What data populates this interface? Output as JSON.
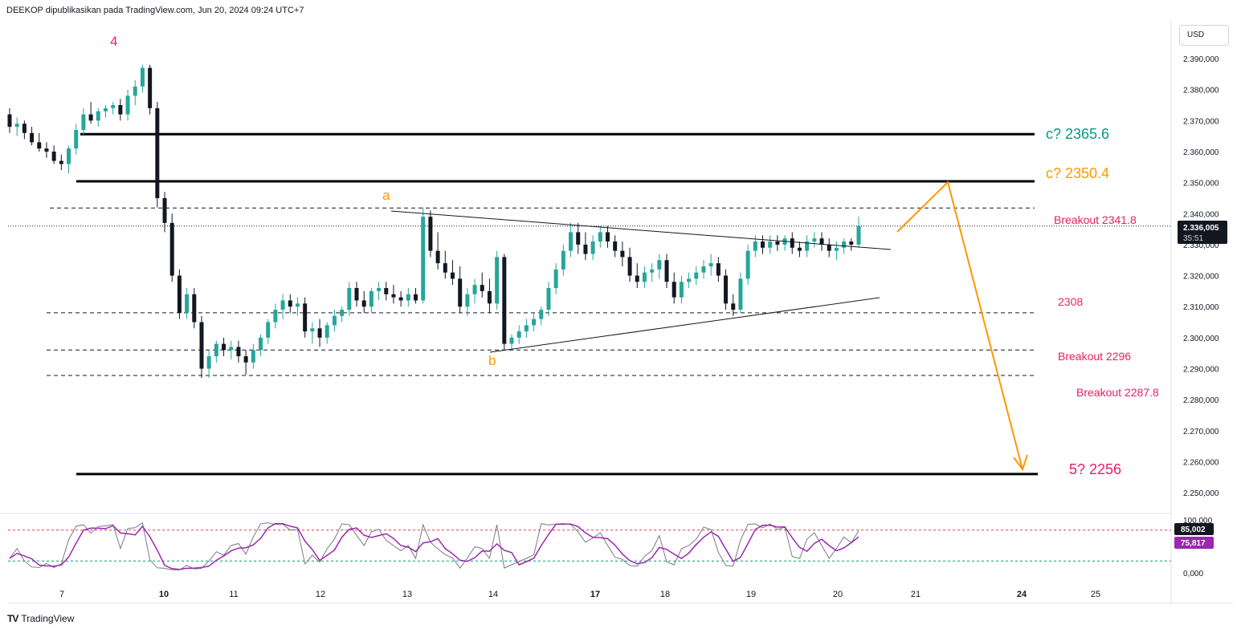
{
  "header": {
    "publish_text": "DEEKOP dipublikasikan pada TradingView.com, Jun 20, 2024 09:24 UTC+7"
  },
  "currency": {
    "label": "USD"
  },
  "logo": {
    "mark": "TV",
    "text": "TradingView"
  },
  "colors": {
    "up": "#26a69a",
    "down": "#131722",
    "wave_label_red": "#e91e63",
    "wave_label_orange": "#ff9800",
    "target_teal": "#089981",
    "projection": "#ff9800",
    "stoch_k": "#787b86",
    "stoch_d": "#9c27b0",
    "stoch_upper": "#f23645",
    "stoch_lower": "#089981"
  },
  "price_scale": {
    "ticks": [
      "2.390,000",
      "2.380,000",
      "2.370,000",
      "2.360,000",
      "2.350,000",
      "2.340,000",
      "2.330,000",
      "2.320,000",
      "2.310,000",
      "2.300,000",
      "2.290,000",
      "2.280,000",
      "2.270,000",
      "2.260,000",
      "2.250,000"
    ],
    "current_price": "2.336,005",
    "countdown": "35:51"
  },
  "stoch_scale": {
    "ticks": [
      "100,000",
      "0,000"
    ],
    "k_value": "85,002",
    "d_value": "75,817"
  },
  "time_axis": {
    "labels": [
      "7",
      "10",
      "11",
      "12",
      "13",
      "14",
      "17",
      "18",
      "19",
      "20",
      "21",
      "24",
      "25"
    ],
    "bold": [
      "10",
      "17",
      "24"
    ]
  },
  "annotations": {
    "wave4": "4",
    "wave_a": "a",
    "wave_b": "b",
    "c_high": "c? 2365.6",
    "c_low": "c? 2350.4",
    "breakout_top": "Breakout 2341.8",
    "level_2308": "2308",
    "breakout_2296": "Breakout 2296",
    "breakout_2287": "Breakout 2287.8",
    "target5": "5? 2256"
  },
  "chart_data": {
    "type": "candlestick",
    "symbol_currency": "USD",
    "ylim": [
      2245,
      2395
    ],
    "horizontal_levels": [
      {
        "price": 2365.6,
        "style": "solid"
      },
      {
        "price": 2350.4,
        "style": "solid"
      },
      {
        "price": 2341.8,
        "style": "dashed"
      },
      {
        "price": 2308,
        "style": "dashed"
      },
      {
        "price": 2296,
        "style": "dashed"
      },
      {
        "price": 2287.8,
        "style": "dashed"
      },
      {
        "price": 2256,
        "style": "solid"
      }
    ],
    "candles": [
      [
        2372,
        2374,
        2366,
        2368
      ],
      [
        2368,
        2371,
        2365,
        2369
      ],
      [
        2369,
        2370,
        2364,
        2366
      ],
      [
        2366,
        2368,
        2362,
        2363
      ],
      [
        2363,
        2366,
        2360,
        2361
      ],
      [
        2361,
        2363,
        2358,
        2360
      ],
      [
        2360,
        2362,
        2356,
        2357
      ],
      [
        2357,
        2359,
        2354,
        2356
      ],
      [
        2356,
        2362,
        2353,
        2361
      ],
      [
        2361,
        2369,
        2359,
        2367
      ],
      [
        2367,
        2374,
        2365,
        2372
      ],
      [
        2372,
        2376,
        2369,
        2370
      ],
      [
        2370,
        2374,
        2368,
        2373
      ],
      [
        2373,
        2375,
        2371,
        2374
      ],
      [
        2374,
        2376,
        2372,
        2375
      ],
      [
        2375,
        2377,
        2370,
        2372
      ],
      [
        2372,
        2380,
        2370,
        2378
      ],
      [
        2378,
        2383,
        2375,
        2381
      ],
      [
        2381,
        2388,
        2379,
        2387
      ],
      [
        2387,
        2388,
        2372,
        2374
      ],
      [
        2374,
        2376,
        2342,
        2345
      ],
      [
        2345,
        2347,
        2334,
        2337
      ],
      [
        2337,
        2340,
        2318,
        2320
      ],
      [
        2320,
        2322,
        2306,
        2308
      ],
      [
        2308,
        2316,
        2306,
        2314
      ],
      [
        2314,
        2316,
        2303,
        2305
      ],
      [
        2305,
        2307,
        2287,
        2290
      ],
      [
        2290,
        2296,
        2287,
        2294
      ],
      [
        2294,
        2299,
        2292,
        2298
      ],
      [
        2298,
        2300,
        2294,
        2296
      ],
      [
        2296,
        2299,
        2293,
        2297
      ],
      [
        2297,
        2299,
        2292,
        2294
      ],
      [
        2294,
        2296,
        2288,
        2292
      ],
      [
        2292,
        2298,
        2290,
        2296
      ],
      [
        2296,
        2301,
        2294,
        2300
      ],
      [
        2300,
        2306,
        2298,
        2305
      ],
      [
        2305,
        2311,
        2303,
        2309
      ],
      [
        2309,
        2314,
        2306,
        2312
      ],
      [
        2312,
        2314,
        2308,
        2310
      ],
      [
        2310,
        2313,
        2307,
        2311
      ],
      [
        2311,
        2313,
        2300,
        2302
      ],
      [
        2302,
        2305,
        2298,
        2303
      ],
      [
        2303,
        2306,
        2297,
        2300
      ],
      [
        2300,
        2305,
        2298,
        2304
      ],
      [
        2304,
        2309,
        2302,
        2307
      ],
      [
        2307,
        2310,
        2305,
        2309
      ],
      [
        2309,
        2318,
        2307,
        2316
      ],
      [
        2316,
        2318,
        2310,
        2312
      ],
      [
        2312,
        2315,
        2308,
        2310
      ],
      [
        2310,
        2316,
        2308,
        2315
      ],
      [
        2315,
        2318,
        2312,
        2316
      ],
      [
        2316,
        2318,
        2312,
        2314
      ],
      [
        2314,
        2317,
        2311,
        2313
      ],
      [
        2313,
        2315,
        2310,
        2312
      ],
      [
        2312,
        2316,
        2310,
        2314
      ],
      [
        2314,
        2316,
        2311,
        2312
      ],
      [
        2312,
        2342,
        2311,
        2339
      ],
      [
        2339,
        2341,
        2326,
        2328
      ],
      [
        2328,
        2334,
        2322,
        2324
      ],
      [
        2324,
        2328,
        2319,
        2321
      ],
      [
        2321,
        2325,
        2317,
        2319
      ],
      [
        2319,
        2323,
        2308,
        2310
      ],
      [
        2310,
        2316,
        2307,
        2314
      ],
      [
        2314,
        2319,
        2311,
        2317
      ],
      [
        2317,
        2321,
        2313,
        2315
      ],
      [
        2315,
        2319,
        2308,
        2311
      ],
      [
        2311,
        2328,
        2309,
        2326
      ],
      [
        2326,
        2327,
        2296,
        2298
      ],
      [
        2298,
        2301,
        2296,
        2300
      ],
      [
        2300,
        2304,
        2298,
        2302
      ],
      [
        2302,
        2306,
        2300,
        2304
      ],
      [
        2304,
        2308,
        2302,
        2306
      ],
      [
        2306,
        2310,
        2304,
        2309
      ],
      [
        2309,
        2318,
        2307,
        2316
      ],
      [
        2316,
        2324,
        2314,
        2322
      ],
      [
        2322,
        2330,
        2320,
        2328
      ],
      [
        2328,
        2337,
        2326,
        2334
      ],
      [
        2334,
        2337,
        2327,
        2330
      ],
      [
        2330,
        2334,
        2325,
        2327
      ],
      [
        2327,
        2333,
        2325,
        2331
      ],
      [
        2331,
        2336,
        2329,
        2334
      ],
      [
        2334,
        2336,
        2329,
        2331
      ],
      [
        2331,
        2333,
        2326,
        2328
      ],
      [
        2328,
        2331,
        2323,
        2326
      ],
      [
        2326,
        2329,
        2318,
        2320
      ],
      [
        2320,
        2324,
        2316,
        2318
      ],
      [
        2318,
        2323,
        2316,
        2321
      ],
      [
        2321,
        2324,
        2318,
        2322
      ],
      [
        2322,
        2327,
        2319,
        2325
      ],
      [
        2325,
        2327,
        2316,
        2318
      ],
      [
        2318,
        2321,
        2311,
        2313
      ],
      [
        2313,
        2320,
        2311,
        2318
      ],
      [
        2318,
        2321,
        2316,
        2319
      ],
      [
        2319,
        2323,
        2317,
        2321
      ],
      [
        2321,
        2325,
        2319,
        2323
      ],
      [
        2323,
        2327,
        2320,
        2324
      ],
      [
        2324,
        2326,
        2318,
        2320
      ],
      [
        2320,
        2322,
        2309,
        2311
      ],
      [
        2311,
        2314,
        2307,
        2309
      ],
      [
        2309,
        2321,
        2308,
        2319
      ],
      [
        2319,
        2330,
        2317,
        2328
      ],
      [
        2328,
        2333,
        2326,
        2331
      ],
      [
        2331,
        2333,
        2327,
        2329
      ],
      [
        2329,
        2333,
        2327,
        2331
      ],
      [
        2331,
        2333,
        2328,
        2330
      ],
      [
        2330,
        2333,
        2328,
        2332
      ],
      [
        2332,
        2334,
        2327,
        2329
      ],
      [
        2329,
        2331,
        2326,
        2328
      ],
      [
        2328,
        2333,
        2326,
        2331
      ],
      [
        2331,
        2334,
        2329,
        2332
      ],
      [
        2332,
        2334,
        2328,
        2330
      ],
      [
        2330,
        2332,
        2326,
        2328
      ],
      [
        2328,
        2331,
        2325,
        2329
      ],
      [
        2329,
        2332,
        2327,
        2331
      ],
      [
        2331,
        2332,
        2328,
        2330
      ],
      [
        2330,
        2339,
        2329,
        2336
      ]
    ]
  }
}
